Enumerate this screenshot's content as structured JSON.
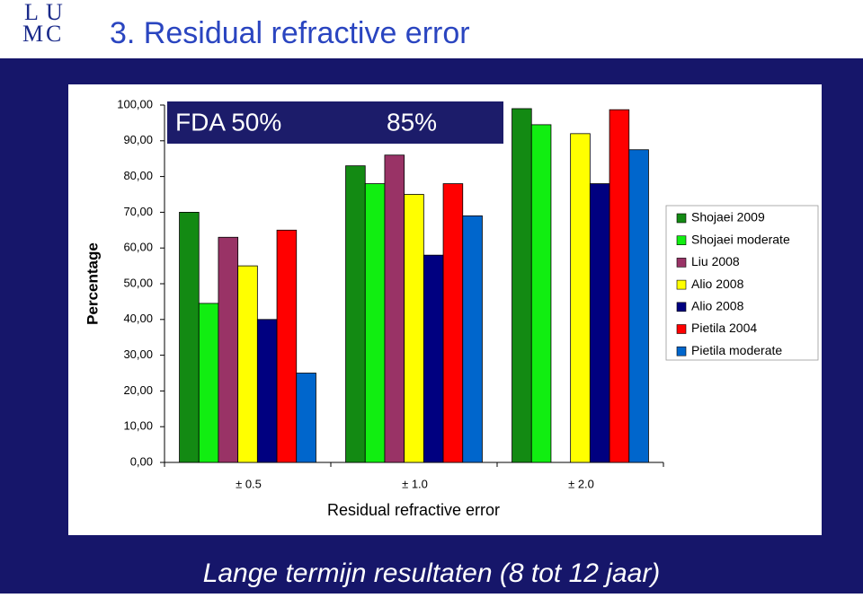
{
  "logo": [
    "L",
    "U",
    "M",
    "C"
  ],
  "title": "3. Residual refractive error",
  "footer": "Lange termijn resultaten (8 tot 12 jaar)",
  "chart_data": {
    "type": "bar",
    "x_label": "Residual refractive error",
    "y_label": "Percentage",
    "categories": [
      "± 0.5",
      "± 1.0",
      "± 2.0"
    ],
    "series": [
      {
        "name": "Shojaei 2009",
        "color": "#138a13",
        "values": [
          70,
          83,
          99
        ]
      },
      {
        "name": "Shojaei moderate",
        "color": "#11ee11",
        "values": [
          44.5,
          78,
          94.5
        ]
      },
      {
        "name": "Liu 2008",
        "color": "#993366",
        "values": [
          63,
          86,
          null
        ]
      },
      {
        "name": "Alio 2008",
        "color": "#ffff00",
        "values": [
          55,
          75,
          92
        ]
      },
      {
        "name": "Alio 2008",
        "color": "#000080",
        "values": [
          40,
          58,
          78
        ]
      },
      {
        "name": "Pietila 2004",
        "color": "#ff0000",
        "values": [
          65,
          78,
          98.7
        ]
      },
      {
        "name": "Pietila moderate",
        "color": "#0066cc",
        "values": [
          25,
          69,
          87.5
        ]
      }
    ],
    "ylim": [
      0,
      100
    ],
    "yticks": [
      {
        "value": 0,
        "label": "0,00"
      },
      {
        "value": 10,
        "label": "10,00"
      },
      {
        "value": 20,
        "label": "20,00"
      },
      {
        "value": 30,
        "label": "30,00"
      },
      {
        "value": 40,
        "label": "40,00"
      },
      {
        "value": 50,
        "label": "50,00"
      },
      {
        "value": 60,
        "label": "60,00"
      },
      {
        "value": 70,
        "label": "70,00"
      },
      {
        "value": 80,
        "label": "80,00"
      },
      {
        "value": 90,
        "label": "90,00"
      },
      {
        "value": 100,
        "label": "100,00"
      }
    ],
    "annotations": [
      "FDA 50%",
      "85%"
    ],
    "legend": "right"
  }
}
